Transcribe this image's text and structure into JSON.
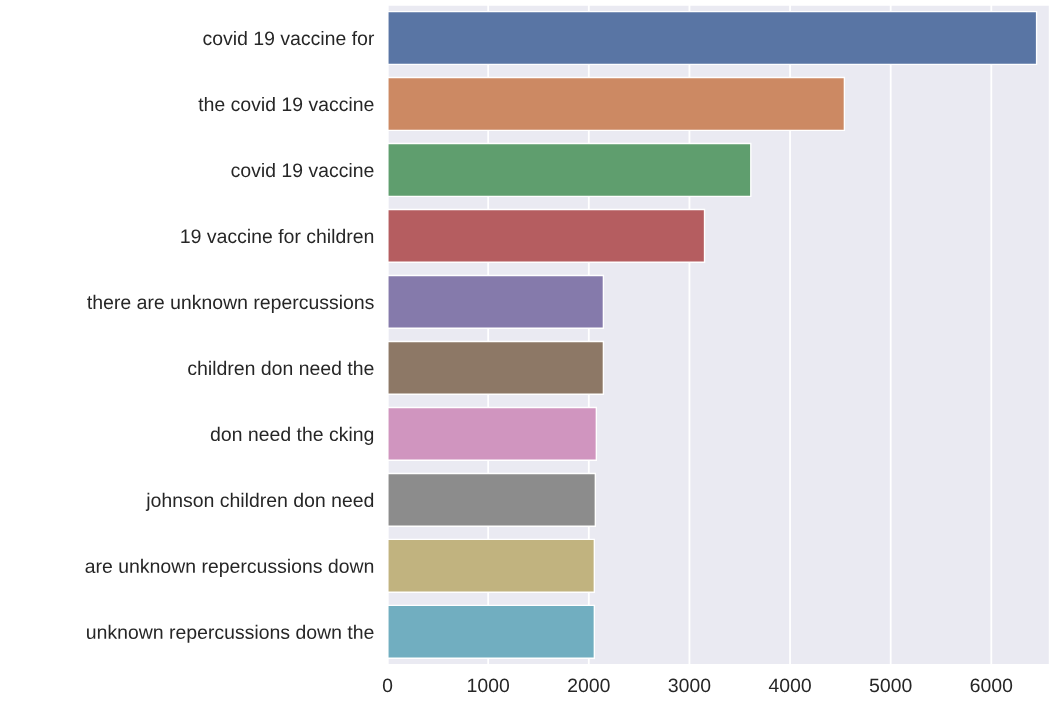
{
  "chart_data": {
    "type": "bar",
    "orientation": "horizontal",
    "categories": [
      "covid 19 vaccine for",
      "the covid 19 vaccine",
      "covid 19 vaccine",
      "19 vaccine for children",
      "there are unknown repercussions",
      "children don need the",
      "don need the cking",
      "johnson children don need",
      "are unknown repercussions down",
      "unknown repercussions down the"
    ],
    "values": [
      6450,
      4540,
      3610,
      3150,
      2145,
      2145,
      2075,
      2065,
      2055,
      2055
    ],
    "colors": [
      "#5975a4",
      "#cc8963",
      "#5f9e6e",
      "#b55d60",
      "#857aab",
      "#8d7866",
      "#d095bf",
      "#8c8c8c",
      "#c1b37f",
      "#71aec0"
    ],
    "xlim": [
      0,
      6580
    ],
    "xticks": [
      0,
      1000,
      2000,
      3000,
      4000,
      5000,
      6000
    ],
    "grid": "x"
  }
}
